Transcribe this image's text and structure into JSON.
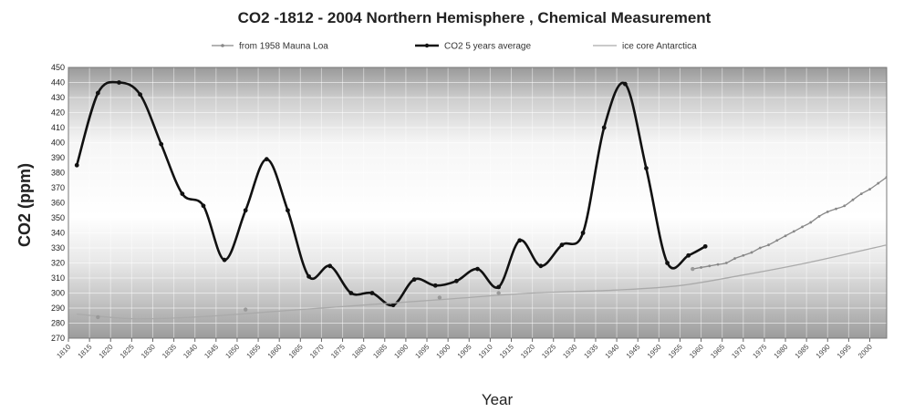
{
  "chart_data": {
    "type": "line",
    "title": "CO2 -1812 - 2004 Northern Hemisphere , Chemical Measurement",
    "xlabel": "Year",
    "ylabel": "CO2 (ppm)",
    "xlim": [
      1810,
      2004
    ],
    "ylim": [
      270,
      450
    ],
    "yticks": [
      270,
      280,
      290,
      300,
      310,
      320,
      330,
      340,
      350,
      360,
      370,
      380,
      390,
      400,
      410,
      420,
      430,
      440,
      450
    ],
    "xticks": [
      1810,
      1815,
      1820,
      1825,
      1830,
      1835,
      1840,
      1845,
      1850,
      1855,
      1860,
      1865,
      1870,
      1875,
      1880,
      1885,
      1890,
      1895,
      1900,
      1905,
      1910,
      1915,
      1920,
      1925,
      1930,
      1935,
      1940,
      1945,
      1950,
      1955,
      1960,
      1965,
      1970,
      1975,
      1980,
      1985,
      1990,
      1995,
      2000
    ],
    "legend_position": "top",
    "grid": true,
    "series": [
      {
        "name": "from 1958 Mauna Loa",
        "color": "#888888",
        "x": [
          1958,
          1960,
          1962,
          1964,
          1966,
          1968,
          1970,
          1972,
          1974,
          1976,
          1978,
          1980,
          1982,
          1984,
          1986,
          1988,
          1990,
          1992,
          1994,
          1996,
          1998,
          2000,
          2002,
          2004
        ],
        "values": [
          316,
          317,
          318,
          319,
          320,
          323,
          325,
          327,
          330,
          332,
          335,
          338,
          341,
          344,
          347,
          351,
          354,
          356,
          358,
          362,
          366,
          369,
          373,
          377
        ]
      },
      {
        "name": "CO2 5 years average",
        "color": "#111111",
        "x": [
          1812,
          1817,
          1822,
          1827,
          1832,
          1837,
          1842,
          1847,
          1852,
          1857,
          1862,
          1867,
          1872,
          1877,
          1882,
          1887,
          1892,
          1897,
          1902,
          1907,
          1912,
          1917,
          1922,
          1927,
          1932,
          1937,
          1942,
          1947,
          1952,
          1957,
          1961
        ],
        "values": [
          385,
          433,
          440,
          432,
          399,
          366,
          358,
          322,
          355,
          389,
          355,
          311,
          318,
          300,
          300,
          292,
          309,
          305,
          308,
          316,
          304,
          335,
          318,
          332,
          340,
          410,
          439,
          383,
          320,
          325,
          331
        ]
      },
      {
        "name": "ice core Antarctica",
        "color": "#aaaaaa",
        "x": [
          1812,
          1825,
          1840,
          1860,
          1880,
          1900,
          1920,
          1940,
          1955,
          1970,
          1985,
          2004
        ],
        "values": [
          286,
          283,
          284,
          288,
          292,
          296,
          300,
          302,
          305,
          312,
          320,
          332
        ]
      }
    ],
    "markers": [
      {
        "x": 1817,
        "y": 284
      },
      {
        "x": 1852,
        "y": 289
      },
      {
        "x": 1898,
        "y": 297
      },
      {
        "x": 1912,
        "y": 300
      },
      {
        "x": 1958,
        "y": 316
      }
    ]
  }
}
